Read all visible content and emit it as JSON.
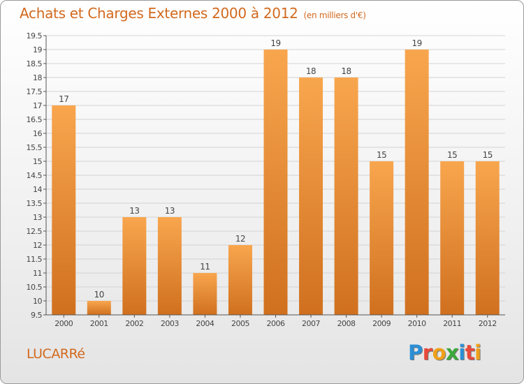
{
  "header": {
    "title": "Achats et Charges Externes 2000 à 2012",
    "unit": "(en milliers d'€)"
  },
  "footer": {
    "commune": "LUCARRé",
    "logo_letters": [
      "P",
      "r",
      "o",
      "x",
      "i",
      "t",
      "i"
    ],
    "logo_colors": [
      "#2b8fd6",
      "#e8483a",
      "#f0a018",
      "#3aa83a",
      "#2b8fd6",
      "#e8483a",
      "#f0a018"
    ]
  },
  "colors": {
    "accent": "#d2691e",
    "bar_top": "#f8a64e",
    "bar_bottom": "#d0701f",
    "grid": "#d3d3d3",
    "axis": "#555555",
    "text": "#444444"
  },
  "chart_data": {
    "type": "bar",
    "title": "Achats et Charges Externes 2000 à 2012",
    "subtitle": "(en milliers d'€)",
    "categories": [
      "2000",
      "2001",
      "2002",
      "2003",
      "2004",
      "2005",
      "2006",
      "2007",
      "2008",
      "2009",
      "2010",
      "2011",
      "2012"
    ],
    "values": [
      17,
      10,
      13,
      13,
      11,
      12,
      19,
      18,
      18,
      15,
      19,
      15,
      15
    ],
    "data_labels": [
      "17",
      "10",
      "13",
      "13",
      "11",
      "12",
      "19",
      "18",
      "18",
      "15",
      "19",
      "15",
      "15"
    ],
    "ylim": [
      9.5,
      19.5
    ],
    "yticks": [
      9.5,
      10,
      10.5,
      11,
      11.5,
      12,
      12.5,
      13,
      13.5,
      14,
      14.5,
      15,
      15.5,
      16,
      16.5,
      17,
      17.5,
      18,
      18.5,
      19,
      19.5
    ],
    "ytick_labels": [
      "9.5",
      "10",
      "10.5",
      "11",
      "11.5",
      "12",
      "12.5",
      "13",
      "13.5",
      "14",
      "14.5",
      "15",
      "15.5",
      "16",
      "16.5",
      "17",
      "17.5",
      "18",
      "18.5",
      "19",
      "19.5"
    ],
    "grid": true,
    "legend": "none",
    "xlabel": "",
    "ylabel": ""
  }
}
